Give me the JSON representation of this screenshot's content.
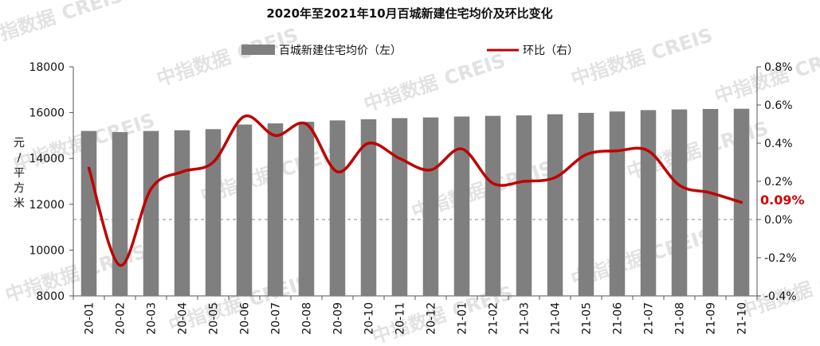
{
  "chart_data": {
    "type": "bar",
    "title": "2020年至2021年10月百城新建住宅均价及环比变化",
    "ylabel_left": "元/平方米",
    "ylabel_left_chars": [
      "元",
      "/",
      "平",
      "方",
      "米"
    ],
    "ylim_left": [
      8000,
      18000
    ],
    "yticks_left": [
      "8000",
      "10000",
      "12000",
      "14000",
      "16000",
      "18000"
    ],
    "ylim_right": [
      -0.4,
      0.8
    ],
    "yticks_right": [
      "-0.4%",
      "-0.2%",
      "0.0%",
      "0.2%",
      "0.4%",
      "0.6%",
      "0.8%"
    ],
    "categories": [
      "20-01",
      "20-02",
      "20-03",
      "20-04",
      "20-05",
      "20-06",
      "20-07",
      "20-08",
      "20-09",
      "20-10",
      "20-11",
      "20-12",
      "21-01",
      "21-02",
      "21-03",
      "21-04",
      "21-05",
      "21-06",
      "21-07",
      "21-08",
      "21-09",
      "21-10"
    ],
    "series": [
      {
        "name": "百城新建住宅均价（左）",
        "type": "bar",
        "axis": "left",
        "color": "#7f7f7f",
        "values": [
          15200,
          15150,
          15200,
          15230,
          15280,
          15480,
          15530,
          15600,
          15660,
          15710,
          15760,
          15790,
          15830,
          15860,
          15880,
          15930,
          15990,
          16050,
          16110,
          16140,
          16160,
          16170
        ]
      },
      {
        "name": "环比（右）",
        "type": "line",
        "axis": "right",
        "color": "#c00000",
        "values": [
          0.27,
          -0.24,
          0.16,
          0.25,
          0.3,
          0.54,
          0.44,
          0.5,
          0.25,
          0.4,
          0.32,
          0.26,
          0.37,
          0.19,
          0.2,
          0.22,
          0.34,
          0.36,
          0.36,
          0.18,
          0.14,
          0.09
        ]
      }
    ],
    "end_label": "0.09%",
    "legend_position": "top",
    "zero_line": "dashed",
    "grid": false
  },
  "watermark": {
    "cn": "中指数据",
    "en": "CREIS"
  }
}
